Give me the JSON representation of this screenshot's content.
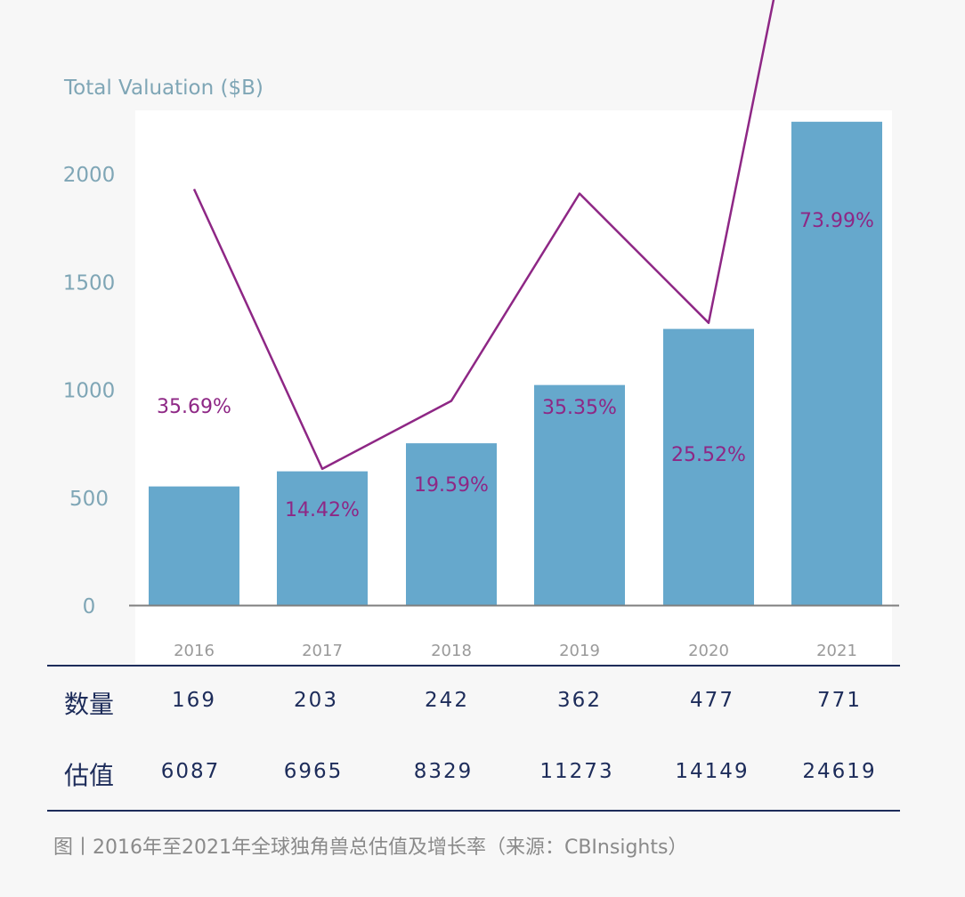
{
  "chart_data": {
    "type": "bar",
    "ylabel": "Total Valuation ($B)",
    "ylim": [
      0,
      2200
    ],
    "yticks": [
      0,
      500,
      1000,
      1500,
      2000
    ],
    "categories": [
      "2016",
      "2017",
      "2018",
      "2019",
      "2020",
      "2021"
    ],
    "series": [
      {
        "type": "bar",
        "values": [
          550,
          620,
          750,
          1020,
          1280,
          2240
        ],
        "color": "#66a8cc"
      },
      {
        "type": "line",
        "values": [
          35.69,
          14.42,
          19.59,
          35.35,
          25.52,
          73.99
        ],
        "labels": [
          "35.69%",
          "14.42%",
          "19.59%",
          "35.35%",
          "25.52%",
          "73.99%"
        ],
        "color": "#8e2785"
      }
    ],
    "grid": false
  },
  "table": {
    "rows": [
      {
        "label": "数量",
        "values": [
          "169",
          "203",
          "242",
          "362",
          "477",
          "771"
        ]
      },
      {
        "label": "估值",
        "values": [
          "6087",
          "6965",
          "8329",
          "11273",
          "14149",
          "24619"
        ]
      }
    ]
  },
  "caption": "图丨2016年至2021年全球独角兽总估值及增长率（来源：CBInsights）",
  "colors": {
    "bar": "#66a8cc",
    "line": "#8e2785",
    "axis_text": "#7fa6b6",
    "table_text": "#1d2c5a",
    "caption": "#8a8a8a"
  }
}
